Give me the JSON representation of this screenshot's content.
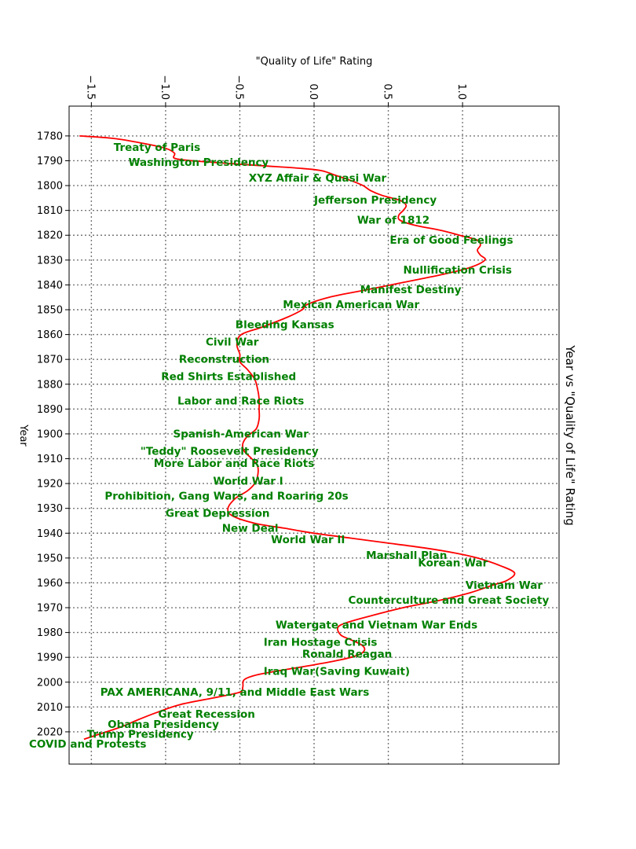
{
  "chart_data": {
    "type": "line",
    "title": "Year vs \"Quality of Life\" Rating",
    "xlabel": "\"Quality of Life\" Rating",
    "ylabel": "Year",
    "xlim": [
      -1.65,
      1.65
    ],
    "ylim": [
      1768,
      2033
    ],
    "x_ticks": [
      -1.5,
      -1.0,
      -0.5,
      0.0,
      0.5,
      1.0
    ],
    "x_tick_labels": [
      "−1.5",
      "−1.0",
      "−0.5",
      "0.0",
      "0.5",
      "1.0"
    ],
    "y_ticks": [
      1780,
      1790,
      1800,
      1810,
      1820,
      1830,
      1840,
      1850,
      1860,
      1870,
      1880,
      1890,
      1900,
      1910,
      1920,
      1930,
      1940,
      1950,
      1960,
      1970,
      1980,
      1990,
      2000,
      2010,
      2020
    ],
    "grid": true,
    "line_color": "#ff0000",
    "annotation_color": "#008000",
    "series": [
      {
        "points": [
          [
            -1.58,
            1780
          ],
          [
            -1.35,
            1781
          ],
          [
            -1.15,
            1783
          ],
          [
            -1.0,
            1785
          ],
          [
            -0.94,
            1787
          ],
          [
            -0.94,
            1789
          ],
          [
            -0.82,
            1790
          ],
          [
            -0.6,
            1791
          ],
          [
            -0.35,
            1792
          ],
          [
            -0.1,
            1793
          ],
          [
            0.05,
            1794
          ],
          [
            0.15,
            1796
          ],
          [
            0.25,
            1798
          ],
          [
            0.33,
            1800
          ],
          [
            0.38,
            1802
          ],
          [
            0.46,
            1804
          ],
          [
            0.58,
            1806
          ],
          [
            0.62,
            1808
          ],
          [
            0.6,
            1810
          ],
          [
            0.57,
            1812
          ],
          [
            0.58,
            1814
          ],
          [
            0.68,
            1816
          ],
          [
            0.85,
            1818
          ],
          [
            0.98,
            1820
          ],
          [
            1.1,
            1822
          ],
          [
            1.12,
            1824
          ],
          [
            1.1,
            1826
          ],
          [
            1.12,
            1828
          ],
          [
            1.15,
            1830
          ],
          [
            1.05,
            1833
          ],
          [
            0.85,
            1836
          ],
          [
            0.6,
            1839
          ],
          [
            0.35,
            1842
          ],
          [
            0.1,
            1845
          ],
          [
            -0.05,
            1848
          ],
          [
            -0.08,
            1850
          ],
          [
            -0.18,
            1853
          ],
          [
            -0.35,
            1857
          ],
          [
            -0.49,
            1860
          ],
          [
            -0.52,
            1864
          ],
          [
            -0.5,
            1868
          ],
          [
            -0.5,
            1871
          ],
          [
            -0.45,
            1874
          ],
          [
            -0.4,
            1878
          ],
          [
            -0.38,
            1882
          ],
          [
            -0.37,
            1886
          ],
          [
            -0.37,
            1890
          ],
          [
            -0.37,
            1894
          ],
          [
            -0.39,
            1898
          ],
          [
            -0.45,
            1901
          ],
          [
            -0.48,
            1904
          ],
          [
            -0.47,
            1907
          ],
          [
            -0.42,
            1910
          ],
          [
            -0.38,
            1913
          ],
          [
            -0.38,
            1917
          ],
          [
            -0.4,
            1920
          ],
          [
            -0.45,
            1923
          ],
          [
            -0.53,
            1926
          ],
          [
            -0.58,
            1930
          ],
          [
            -0.55,
            1933
          ],
          [
            -0.4,
            1936
          ],
          [
            -0.2,
            1938
          ],
          [
            0.0,
            1940
          ],
          [
            0.25,
            1942
          ],
          [
            0.5,
            1944
          ],
          [
            0.75,
            1946
          ],
          [
            0.95,
            1948
          ],
          [
            1.1,
            1950
          ],
          [
            1.25,
            1953
          ],
          [
            1.35,
            1956
          ],
          [
            1.3,
            1959
          ],
          [
            1.2,
            1961
          ],
          [
            1.05,
            1964
          ],
          [
            0.85,
            1967
          ],
          [
            0.6,
            1970
          ],
          [
            0.4,
            1973
          ],
          [
            0.22,
            1976
          ],
          [
            0.16,
            1978
          ],
          [
            0.18,
            1981
          ],
          [
            0.25,
            1983
          ],
          [
            0.32,
            1985
          ],
          [
            0.34,
            1987
          ],
          [
            0.3,
            1989
          ],
          [
            0.18,
            1991
          ],
          [
            0.0,
            1993
          ],
          [
            -0.2,
            1995
          ],
          [
            -0.38,
            1997
          ],
          [
            -0.47,
            1999
          ],
          [
            -0.48,
            2002
          ],
          [
            -0.5,
            2004
          ],
          [
            -0.65,
            2006
          ],
          [
            -0.9,
            2009
          ],
          [
            -1.05,
            2012
          ],
          [
            -1.18,
            2015
          ],
          [
            -1.3,
            2018
          ],
          [
            -1.45,
            2021
          ],
          [
            -1.55,
            2023
          ]
        ]
      }
    ],
    "annotations": [
      {
        "text": "Treaty of Paris",
        "x": -1.35,
        "y": 1784.5
      },
      {
        "text": "Washington Presidency",
        "x": -1.25,
        "y": 1790.5
      },
      {
        "text": "XYZ Affair & Quasi War",
        "x": -0.44,
        "y": 1796.8
      },
      {
        "text": "Jefferson Presidency",
        "x": 0.0,
        "y": 1805.7
      },
      {
        "text": "War of 1812",
        "x": 0.29,
        "y": 1813.8
      },
      {
        "text": "Era of Good Feelings",
        "x": 0.51,
        "y": 1821.8
      },
      {
        "text": "Nullification Crisis",
        "x": 0.6,
        "y": 1833.8
      },
      {
        "text": "Manifest Destiny",
        "x": 0.31,
        "y": 1841.8
      },
      {
        "text": "Mexican American War",
        "x": -0.21,
        "y": 1847.8
      },
      {
        "text": "Bleeding Kansas",
        "x": -0.53,
        "y": 1855.8
      },
      {
        "text": "Civil War",
        "x": -0.73,
        "y": 1862.8
      },
      {
        "text": "Reconstruction",
        "x": -0.91,
        "y": 1869.8
      },
      {
        "text": "Red Shirts Established",
        "x": -1.03,
        "y": 1876.8
      },
      {
        "text": "Labor and Race Riots",
        "x": -0.92,
        "y": 1886.5
      },
      {
        "text": "Spanish-American War",
        "x": -0.95,
        "y": 1899.8
      },
      {
        "text": "\"Teddy\" Roosevelt Presidency",
        "x": -1.17,
        "y": 1906.8
      },
      {
        "text": "More Labor and Race Riots",
        "x": -1.08,
        "y": 1911.8
      },
      {
        "text": "World War I",
        "x": -0.68,
        "y": 1918.8
      },
      {
        "text": "Prohibition, Gang Wars, and Roaring 20s",
        "x": -1.41,
        "y": 1924.8
      },
      {
        "text": "Great Depression",
        "x": -1.0,
        "y": 1931.8
      },
      {
        "text": "New Deal",
        "x": -0.62,
        "y": 1937.8
      },
      {
        "text": "World War II",
        "x": -0.29,
        "y": 1942.5
      },
      {
        "text": "Marshall Plan",
        "x": 0.35,
        "y": 1948.8
      },
      {
        "text": "Korean War",
        "x": 0.7,
        "y": 1951.8
      },
      {
        "text": "Vietnam War",
        "x": 1.02,
        "y": 1960.8
      },
      {
        "text": "Counterculture and Great Society",
        "x": 0.23,
        "y": 1966.8
      },
      {
        "text": "Watergate and Vietnam War Ends",
        "x": -0.26,
        "y": 1976.8
      },
      {
        "text": "Iran Hostage Crisis",
        "x": -0.34,
        "y": 1983.8
      },
      {
        "text": "Ronald Reagan",
        "x": -0.08,
        "y": 1988.5
      },
      {
        "text": "Iraq War(Saving Kuwait)",
        "x": -0.34,
        "y": 1995.5
      },
      {
        "text": "PAX AMERICANA, 9/11, and Middle East Wars",
        "x": -1.44,
        "y": 2003.8
      },
      {
        "text": "Great Recession",
        "x": -1.05,
        "y": 2012.8
      },
      {
        "text": "Obama Presidency",
        "x": -1.39,
        "y": 2016.8
      },
      {
        "text": "Trump Presidency",
        "x": -1.53,
        "y": 2020.8
      },
      {
        "text": "COVID and Protests",
        "x": -1.92,
        "y": 2024.8
      }
    ]
  }
}
